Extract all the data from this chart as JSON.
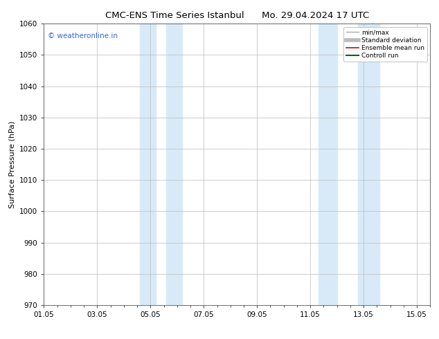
{
  "title_left": "CMC-ENS Time Series Istanbul",
  "title_right": "Mo. 29.04.2024 17 UTC",
  "ylabel": "Surface Pressure (hPa)",
  "ylim": [
    970,
    1060
  ],
  "yticks": [
    970,
    980,
    990,
    1000,
    1010,
    1020,
    1030,
    1040,
    1050,
    1060
  ],
  "xlim": [
    0,
    14
  ],
  "xtick_positions": [
    0,
    2,
    4,
    6,
    8,
    10,
    12,
    14
  ],
  "xtick_labels": [
    "01.05",
    "03.05",
    "05.05",
    "07.05",
    "09.05",
    "11.05",
    "13.05",
    "15.05"
  ],
  "shaded_bands": [
    {
      "xmin": 3.6,
      "xmax": 4.2
    },
    {
      "xmin": 4.6,
      "xmax": 5.2
    },
    {
      "xmin": 10.3,
      "xmax": 11.0
    },
    {
      "xmin": 11.8,
      "xmax": 12.6
    }
  ],
  "band_color": "#d8eaf8",
  "watermark_text": "© weatheronline.in",
  "watermark_color": "#3366cc",
  "legend_entries": [
    {
      "label": "min/max",
      "color": "#aaaaaa",
      "lw": 1.0
    },
    {
      "label": "Standard deviation",
      "color": "#bbbbbb",
      "lw": 4
    },
    {
      "label": "Ensemble mean run",
      "color": "#dd0000",
      "lw": 1.2
    },
    {
      "label": "Controll run",
      "color": "#006600",
      "lw": 1.5
    }
  ],
  "bg_color": "#ffffff",
  "grid_color": "#bbbbbb",
  "font_family": "DejaVu Sans",
  "title_fontsize": 9.5,
  "ylabel_fontsize": 8,
  "tick_fontsize": 7.5,
  "watermark_fontsize": 7.5,
  "legend_fontsize": 6.5
}
